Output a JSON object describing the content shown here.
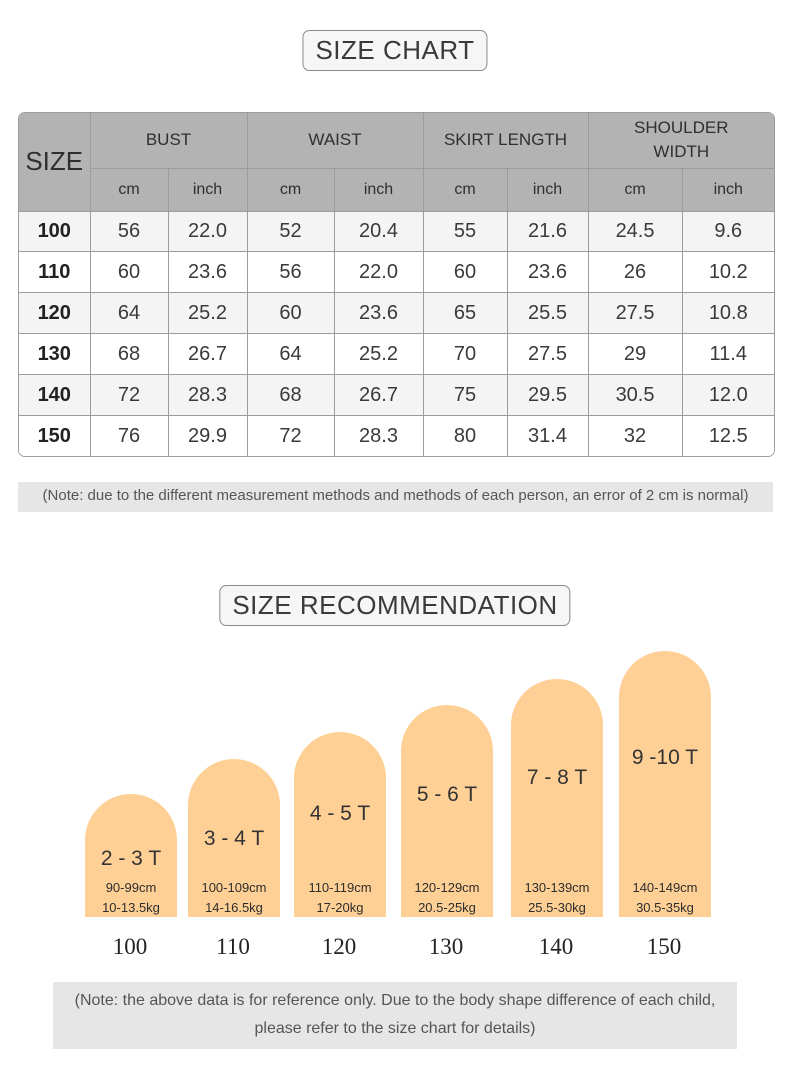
{
  "size_chart": {
    "title": "SIZE CHART",
    "size_label": "SIZE",
    "groups": [
      "BUST",
      "WAIST",
      "SKIRT LENGTH",
      "SHOULDER WIDTH"
    ],
    "units": [
      "cm",
      "inch",
      "cm",
      "inch",
      "cm",
      "inch",
      "cm",
      "inch"
    ],
    "rows": [
      {
        "size": "100",
        "values": [
          "56",
          "22.0",
          "52",
          "20.4",
          "55",
          "21.6",
          "24.5",
          "9.6"
        ]
      },
      {
        "size": "110",
        "values": [
          "60",
          "23.6",
          "56",
          "22.0",
          "60",
          "23.6",
          "26",
          "10.2"
        ]
      },
      {
        "size": "120",
        "values": [
          "64",
          "25.2",
          "60",
          "23.6",
          "65",
          "25.5",
          "27.5",
          "10.8"
        ]
      },
      {
        "size": "130",
        "values": [
          "68",
          "26.7",
          "64",
          "25.2",
          "70",
          "27.5",
          "29",
          "11.4"
        ]
      },
      {
        "size": "140",
        "values": [
          "72",
          "28.3",
          "68",
          "26.7",
          "75",
          "29.5",
          "30.5",
          "12.0"
        ]
      },
      {
        "size": "150",
        "values": [
          "76",
          "29.9",
          "72",
          "28.3",
          "80",
          "31.4",
          "32",
          "12.5"
        ]
      }
    ],
    "note": "(Note: due to the different measurement methods and methods of each person, an error of 2 cm is normal)"
  },
  "recommendation": {
    "title": "SIZE RECOMMENDATION",
    "items": [
      {
        "age": "2 - 3 T",
        "height": "90-99cm",
        "weight": "10-13.5kg",
        "size": "100"
      },
      {
        "age": "3 - 4 T",
        "height": "100-109cm",
        "weight": "14-16.5kg",
        "size": "110"
      },
      {
        "age": "4 - 5 T",
        "height": "110-119cm",
        "weight": "17-20kg",
        "size": "120"
      },
      {
        "age": "5 - 6 T",
        "height": "120-129cm",
        "weight": "20.5-25kg",
        "size": "130"
      },
      {
        "age": "7 - 8 T",
        "height": "130-139cm",
        "weight": "25.5-30kg",
        "size": "140"
      },
      {
        "age": "9 -10 T",
        "height": "140-149cm",
        "weight": "30.5-35kg",
        "size": "150"
      }
    ],
    "note_line1": "(Note: the above data is for reference only. Due to the body shape difference of each child,",
    "note_line2": "please refer to the size chart for details)"
  },
  "colors": {
    "header_gray": "#b3b3b3",
    "bar_peach": "#ffd095",
    "note_bg": "#e6e6e6"
  }
}
